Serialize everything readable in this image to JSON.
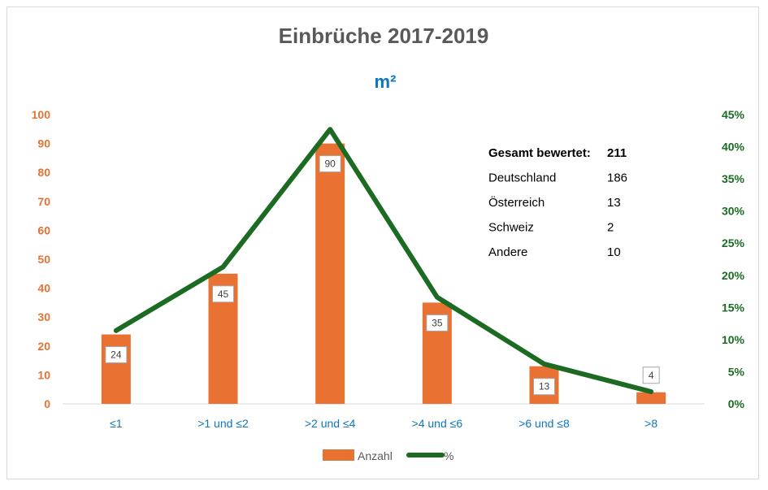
{
  "chart_data": {
    "type": "bar+line",
    "title": "Einbrüche 2017-2019",
    "subtitle": "m²",
    "categories": [
      "≤1",
      ">1 und ≤2",
      ">2 und ≤4",
      ">4 und ≤6",
      ">6 und ≤8",
      ">8"
    ],
    "series": [
      {
        "name": "Anzahl",
        "type": "bar",
        "axis": "left",
        "color": "#E97132",
        "values": [
          24,
          45,
          90,
          35,
          13,
          4
        ]
      },
      {
        "name": "%",
        "type": "line",
        "axis": "right",
        "color": "#1B6B23",
        "values": [
          11.4,
          21.3,
          42.7,
          16.6,
          6.2,
          1.9
        ]
      }
    ],
    "left_axis": {
      "range": [
        0,
        100
      ],
      "ticks": [
        "0",
        "10",
        "20",
        "30",
        "40",
        "50",
        "60",
        "70",
        "80",
        "90",
        "100"
      ],
      "color": "#E97132"
    },
    "right_axis": {
      "range": [
        0,
        45
      ],
      "ticks": [
        "0%",
        "5%",
        "10%",
        "15%",
        "20%",
        "25%",
        "30%",
        "35%",
        "40%",
        "45%"
      ],
      "color": "#1B6B23"
    },
    "legend": {
      "position": "bottom",
      "entries": [
        "Anzahl",
        "%"
      ]
    },
    "annotation": {
      "rows": [
        {
          "label": "Gesamt bewertet:",
          "value": "211",
          "bold": true
        },
        {
          "label": "Deutschland",
          "value": "186"
        },
        {
          "label": "Österreich",
          "value": "13"
        },
        {
          "label": "Schweiz",
          "value": "2"
        },
        {
          "label": "Andere",
          "value": "10"
        }
      ]
    }
  }
}
